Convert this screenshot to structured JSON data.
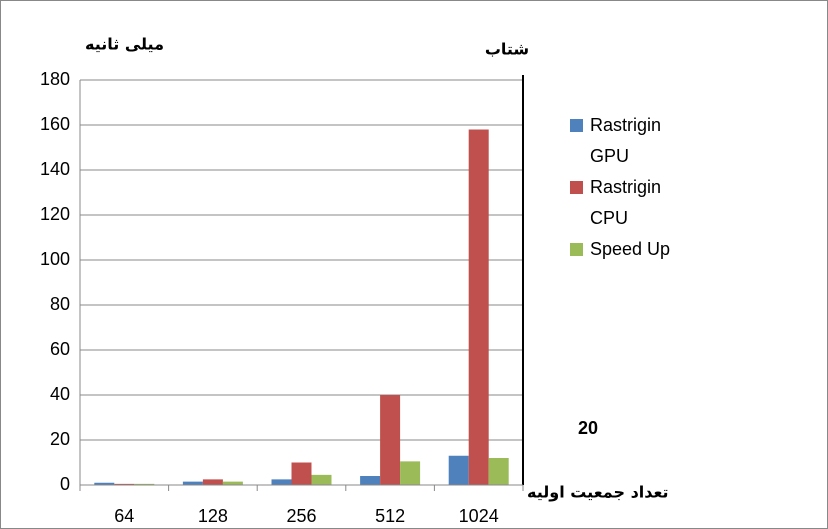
{
  "chart_data": {
    "type": "bar",
    "y_label": "میلی ثانیه",
    "y2_label": "شتاب",
    "x_label": "تعداد جمعیت اولیه",
    "categories": [
      "64",
      "128",
      "256",
      "512",
      "1024"
    ],
    "series": [
      {
        "name": "Rastrigin GPU",
        "color": "#4f81bd",
        "values": [
          1,
          1.5,
          2.5,
          4,
          13
        ]
      },
      {
        "name": "Rastrigin CPU",
        "color": "#c0504d",
        "values": [
          0.5,
          2.5,
          10,
          40,
          158
        ]
      },
      {
        "name": "Speed Up",
        "color": "#9bbb59",
        "values": [
          0.5,
          1.5,
          4.5,
          10.5,
          12
        ]
      }
    ],
    "ylim": [
      0,
      180
    ],
    "yticks": [
      0,
      20,
      40,
      60,
      80,
      100,
      120,
      140,
      160,
      180
    ],
    "y2lim": [
      0,
      180
    ],
    "y2ticks": [
      20
    ],
    "grid": true,
    "legend": "right"
  }
}
